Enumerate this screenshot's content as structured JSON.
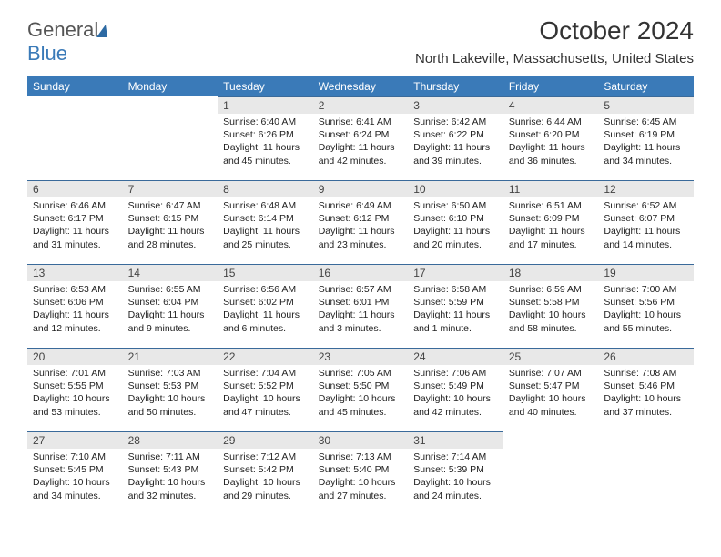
{
  "brand": {
    "part1": "General",
    "part2": "Blue"
  },
  "title": "October 2024",
  "location": "North Lakeville, Massachusetts, United States",
  "colors": {
    "header_bg": "#3a7ab8",
    "header_text": "#ffffff",
    "daynum_bg": "#e8e8e8",
    "daynum_border": "#3a6a9a",
    "text": "#222222",
    "page_bg": "#ffffff"
  },
  "daysOfWeek": [
    "Sunday",
    "Monday",
    "Tuesday",
    "Wednesday",
    "Thursday",
    "Friday",
    "Saturday"
  ],
  "weeks": [
    [
      null,
      null,
      {
        "n": "1",
        "sr": "6:40 AM",
        "ss": "6:26 PM",
        "dl": "11 hours and 45 minutes."
      },
      {
        "n": "2",
        "sr": "6:41 AM",
        "ss": "6:24 PM",
        "dl": "11 hours and 42 minutes."
      },
      {
        "n": "3",
        "sr": "6:42 AM",
        "ss": "6:22 PM",
        "dl": "11 hours and 39 minutes."
      },
      {
        "n": "4",
        "sr": "6:44 AM",
        "ss": "6:20 PM",
        "dl": "11 hours and 36 minutes."
      },
      {
        "n": "5",
        "sr": "6:45 AM",
        "ss": "6:19 PM",
        "dl": "11 hours and 34 minutes."
      }
    ],
    [
      {
        "n": "6",
        "sr": "6:46 AM",
        "ss": "6:17 PM",
        "dl": "11 hours and 31 minutes."
      },
      {
        "n": "7",
        "sr": "6:47 AM",
        "ss": "6:15 PM",
        "dl": "11 hours and 28 minutes."
      },
      {
        "n": "8",
        "sr": "6:48 AM",
        "ss": "6:14 PM",
        "dl": "11 hours and 25 minutes."
      },
      {
        "n": "9",
        "sr": "6:49 AM",
        "ss": "6:12 PM",
        "dl": "11 hours and 23 minutes."
      },
      {
        "n": "10",
        "sr": "6:50 AM",
        "ss": "6:10 PM",
        "dl": "11 hours and 20 minutes."
      },
      {
        "n": "11",
        "sr": "6:51 AM",
        "ss": "6:09 PM",
        "dl": "11 hours and 17 minutes."
      },
      {
        "n": "12",
        "sr": "6:52 AM",
        "ss": "6:07 PM",
        "dl": "11 hours and 14 minutes."
      }
    ],
    [
      {
        "n": "13",
        "sr": "6:53 AM",
        "ss": "6:06 PM",
        "dl": "11 hours and 12 minutes."
      },
      {
        "n": "14",
        "sr": "6:55 AM",
        "ss": "6:04 PM",
        "dl": "11 hours and 9 minutes."
      },
      {
        "n": "15",
        "sr": "6:56 AM",
        "ss": "6:02 PM",
        "dl": "11 hours and 6 minutes."
      },
      {
        "n": "16",
        "sr": "6:57 AM",
        "ss": "6:01 PM",
        "dl": "11 hours and 3 minutes."
      },
      {
        "n": "17",
        "sr": "6:58 AM",
        "ss": "5:59 PM",
        "dl": "11 hours and 1 minute."
      },
      {
        "n": "18",
        "sr": "6:59 AM",
        "ss": "5:58 PM",
        "dl": "10 hours and 58 minutes."
      },
      {
        "n": "19",
        "sr": "7:00 AM",
        "ss": "5:56 PM",
        "dl": "10 hours and 55 minutes."
      }
    ],
    [
      {
        "n": "20",
        "sr": "7:01 AM",
        "ss": "5:55 PM",
        "dl": "10 hours and 53 minutes."
      },
      {
        "n": "21",
        "sr": "7:03 AM",
        "ss": "5:53 PM",
        "dl": "10 hours and 50 minutes."
      },
      {
        "n": "22",
        "sr": "7:04 AM",
        "ss": "5:52 PM",
        "dl": "10 hours and 47 minutes."
      },
      {
        "n": "23",
        "sr": "7:05 AM",
        "ss": "5:50 PM",
        "dl": "10 hours and 45 minutes."
      },
      {
        "n": "24",
        "sr": "7:06 AM",
        "ss": "5:49 PM",
        "dl": "10 hours and 42 minutes."
      },
      {
        "n": "25",
        "sr": "7:07 AM",
        "ss": "5:47 PM",
        "dl": "10 hours and 40 minutes."
      },
      {
        "n": "26",
        "sr": "7:08 AM",
        "ss": "5:46 PM",
        "dl": "10 hours and 37 minutes."
      }
    ],
    [
      {
        "n": "27",
        "sr": "7:10 AM",
        "ss": "5:45 PM",
        "dl": "10 hours and 34 minutes."
      },
      {
        "n": "28",
        "sr": "7:11 AM",
        "ss": "5:43 PM",
        "dl": "10 hours and 32 minutes."
      },
      {
        "n": "29",
        "sr": "7:12 AM",
        "ss": "5:42 PM",
        "dl": "10 hours and 29 minutes."
      },
      {
        "n": "30",
        "sr": "7:13 AM",
        "ss": "5:40 PM",
        "dl": "10 hours and 27 minutes."
      },
      {
        "n": "31",
        "sr": "7:14 AM",
        "ss": "5:39 PM",
        "dl": "10 hours and 24 minutes."
      },
      null,
      null
    ]
  ],
  "labels": {
    "sunrise": "Sunrise:",
    "sunset": "Sunset:",
    "daylight": "Daylight:"
  }
}
